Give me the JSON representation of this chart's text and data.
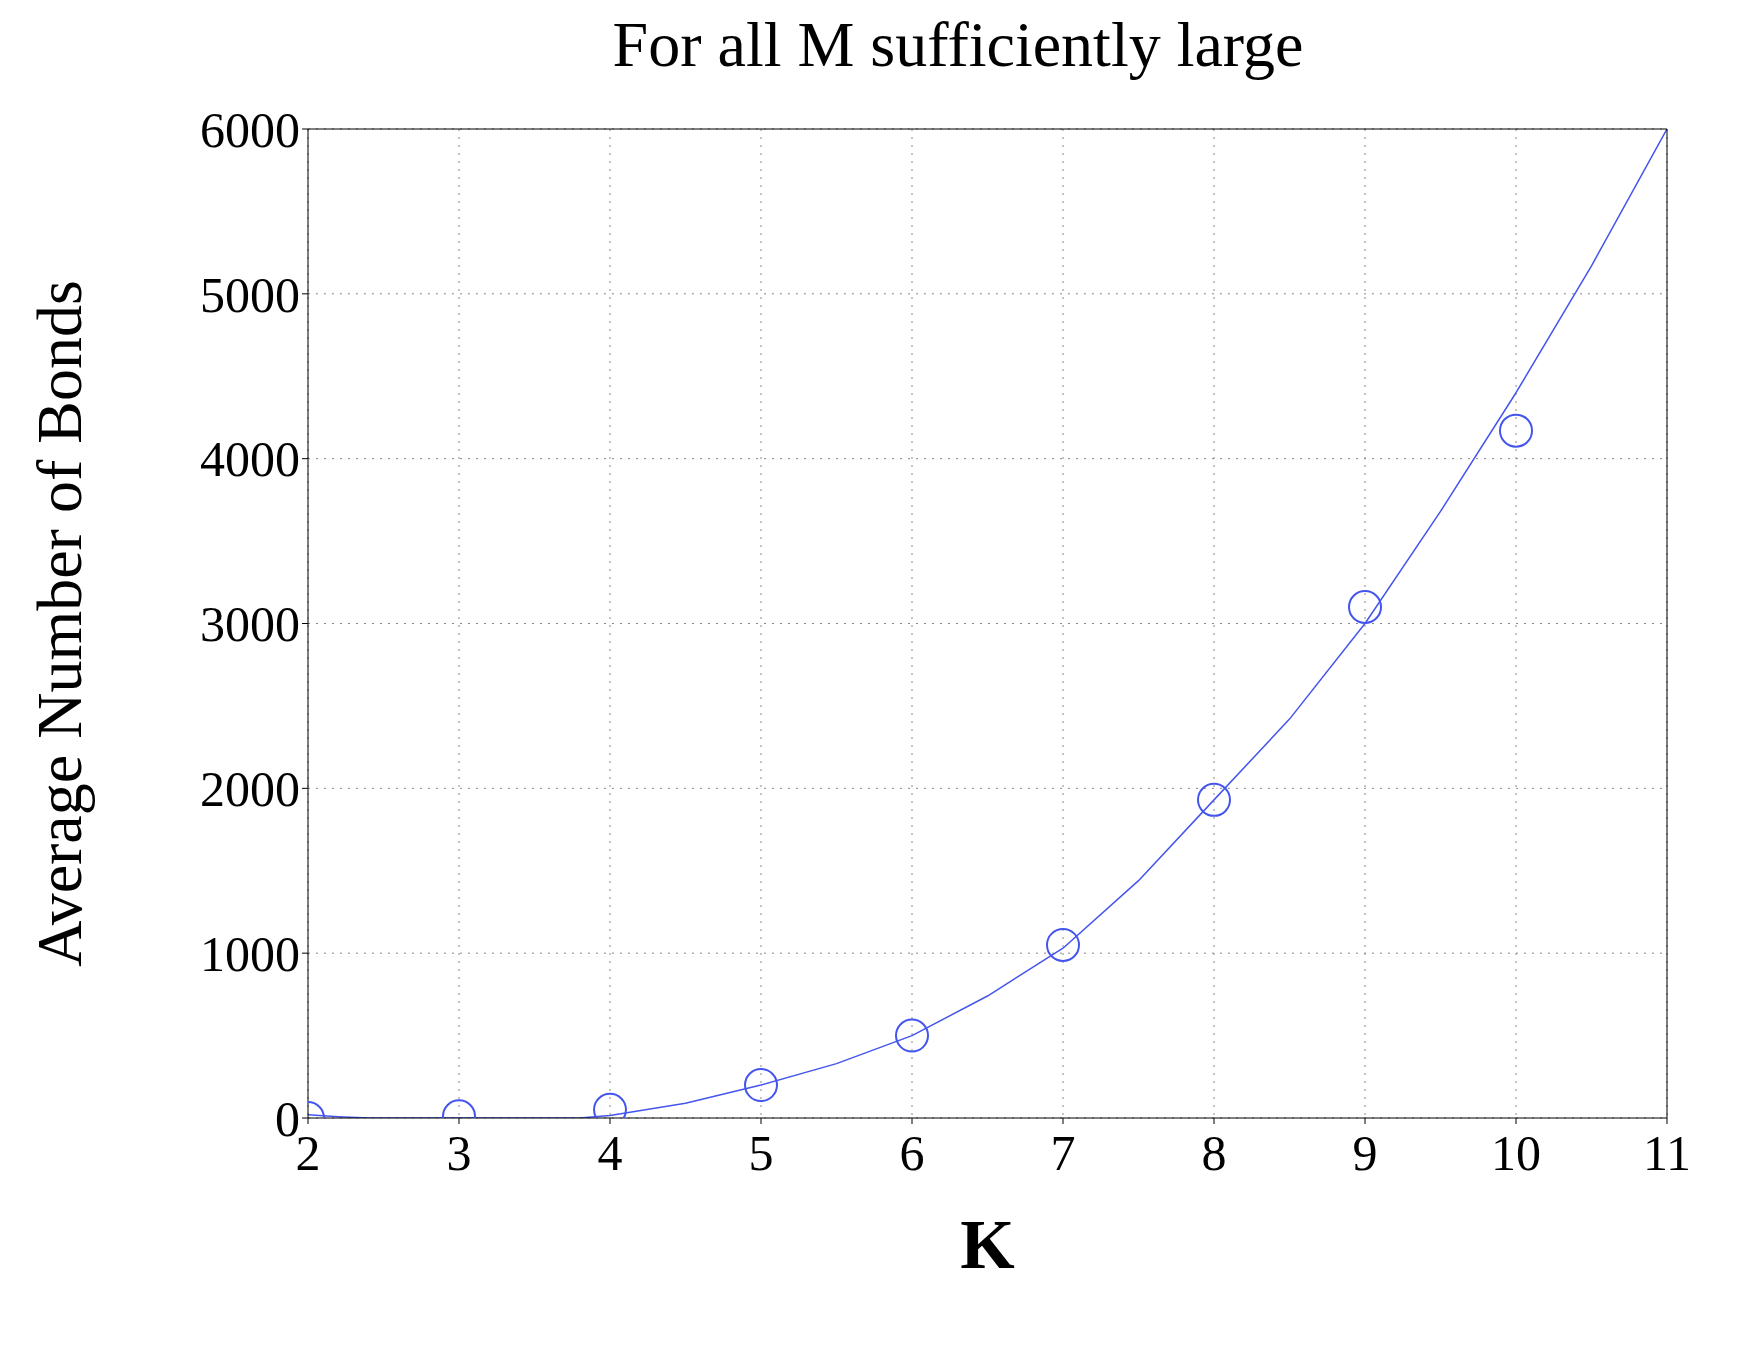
{
  "chart_data": {
    "type": "scatter",
    "title": "For all M sufficiently large",
    "xlabel": "K",
    "ylabel": "Average Number of Bonds",
    "xlim": [
      2,
      11
    ],
    "ylim": [
      0,
      6000
    ],
    "xticks": [
      2,
      3,
      4,
      5,
      6,
      7,
      8,
      9,
      10,
      11
    ],
    "yticks": [
      0,
      1000,
      2000,
      3000,
      4000,
      5000,
      6000
    ],
    "grid": true,
    "legend": false,
    "series": [
      {
        "type": "scatter",
        "color": "#4455ee",
        "marker": "circle",
        "x": [
          2,
          3,
          4,
          5,
          6,
          7,
          8,
          9,
          10
        ],
        "values": [
          0,
          10,
          50,
          200,
          500,
          1050,
          1930,
          3100,
          4170
        ]
      },
      {
        "type": "line",
        "color": "#4455ee",
        "marker": "none",
        "line_style": "solid",
        "x": [
          2,
          2.2,
          2.4,
          3,
          3.8,
          4,
          4.5,
          5,
          5.5,
          6,
          6.5,
          7,
          7.5,
          8,
          8.5,
          9,
          9.5,
          10,
          10.5,
          11
        ],
        "values": [
          20,
          8,
          0,
          0,
          0,
          15,
          90,
          200,
          330,
          500,
          740,
          1030,
          1440,
          1930,
          2420,
          3000,
          3680,
          4400,
          5170,
          6000
        ]
      }
    ]
  }
}
